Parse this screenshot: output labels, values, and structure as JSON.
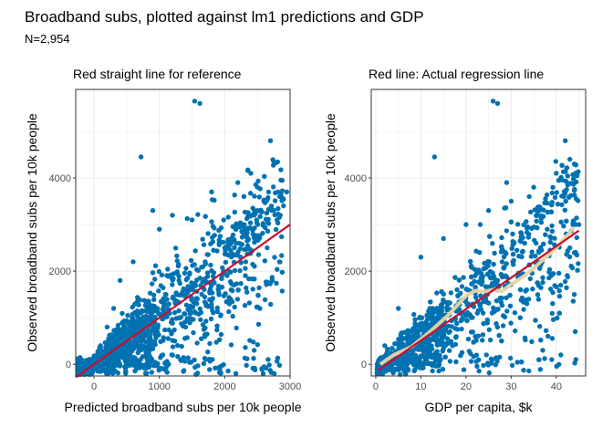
{
  "figure": {
    "title": "Broadband subs, plotted against lm1 predictions and GDP",
    "subtitle": "N=2,954"
  },
  "colors": {
    "points": "#0072B2",
    "regression_line": "#C8102E",
    "smooth_line": "#E8D5A3",
    "grid": "#EBEBEB",
    "panel_border": "#333333"
  },
  "chart_data": [
    {
      "type": "scatter",
      "title": "Red straight line for reference",
      "xlabel": "Predicted broadband subs per 10k people",
      "ylabel": "Observed broadband subs per 10k people",
      "xlim": [
        -280,
        3000
      ],
      "ylim": [
        -250,
        5900
      ],
      "x_ticks": [
        0,
        1000,
        2000,
        3000
      ],
      "y_ticks": [
        0,
        2000,
        4000
      ],
      "grid": true,
      "n_points": 2954,
      "reference_line": {
        "kind": "y = x",
        "x": [
          -280,
          3000
        ],
        "y": [
          -280,
          3000
        ]
      },
      "sample_points": {
        "x": [
          1540,
          1620,
          720,
          2700,
          2750,
          2400,
          2200,
          1800,
          2600,
          2500,
          2900,
          900,
          1200,
          1500,
          1000,
          600,
          400,
          300,
          200,
          100,
          50,
          1100,
          1300,
          1700,
          2000,
          2100,
          2300,
          2800,
          2850,
          2950,
          2650,
          2450,
          800,
          500,
          0,
          -100,
          -200,
          1400,
          1900
        ],
        "y": [
          5650,
          5600,
          4450,
          4800,
          4350,
          4100,
          3900,
          3700,
          3500,
          3300,
          3400,
          3300,
          3200,
          3100,
          2900,
          2200,
          1800,
          1200,
          800,
          400,
          100,
          1500,
          1800,
          2200,
          2500,
          2700,
          3000,
          3100,
          3200,
          3700,
          2500,
          300,
          0,
          600,
          -100,
          -150,
          -200,
          800,
          1600
        ]
      }
    },
    {
      "type": "scatter",
      "title": "Red line: Actual regression line",
      "xlabel": "GDP per capita, $k",
      "ylabel": "Observed broadband subs per 10k people",
      "xlim": [
        -1,
        46.5
      ],
      "ylim": [
        -250,
        5900
      ],
      "x_ticks": [
        0,
        10,
        20,
        30,
        40
      ],
      "y_ticks": [
        0,
        2000,
        4000
      ],
      "grid": true,
      "n_points": 2954,
      "regression_line": {
        "x": [
          0.5,
          45
        ],
        "y": [
          -130,
          2870
        ]
      },
      "smooth_line": {
        "x": [
          1,
          4,
          8,
          12,
          16,
          20,
          22,
          24,
          26,
          28,
          30,
          33,
          36,
          40,
          44
        ],
        "y": [
          0,
          200,
          380,
          700,
          1050,
          1470,
          1580,
          1560,
          1600,
          1570,
          1720,
          1900,
          2150,
          2500,
          2940
        ]
      },
      "sample_points": {
        "x": [
          26,
          27,
          13,
          42,
          43,
          44,
          40,
          35,
          30,
          25,
          20,
          15,
          10,
          5,
          2,
          1,
          45,
          38,
          33,
          28,
          22,
          18,
          12,
          8,
          3,
          41,
          39,
          37,
          32,
          27,
          23,
          17,
          11,
          6,
          44,
          43,
          42,
          29,
          34
        ],
        "y": [
          5650,
          5600,
          4450,
          4800,
          4400,
          4300,
          4100,
          3800,
          3500,
          3300,
          3000,
          2700,
          2300,
          1200,
          400,
          0,
          3000,
          2900,
          2600,
          2200,
          1900,
          1600,
          1200,
          700,
          200,
          200,
          100,
          300,
          1000,
          1800,
          2400,
          400,
          300,
          100,
          1500,
          2500,
          3700,
          3900,
          3600
        ]
      }
    }
  ]
}
